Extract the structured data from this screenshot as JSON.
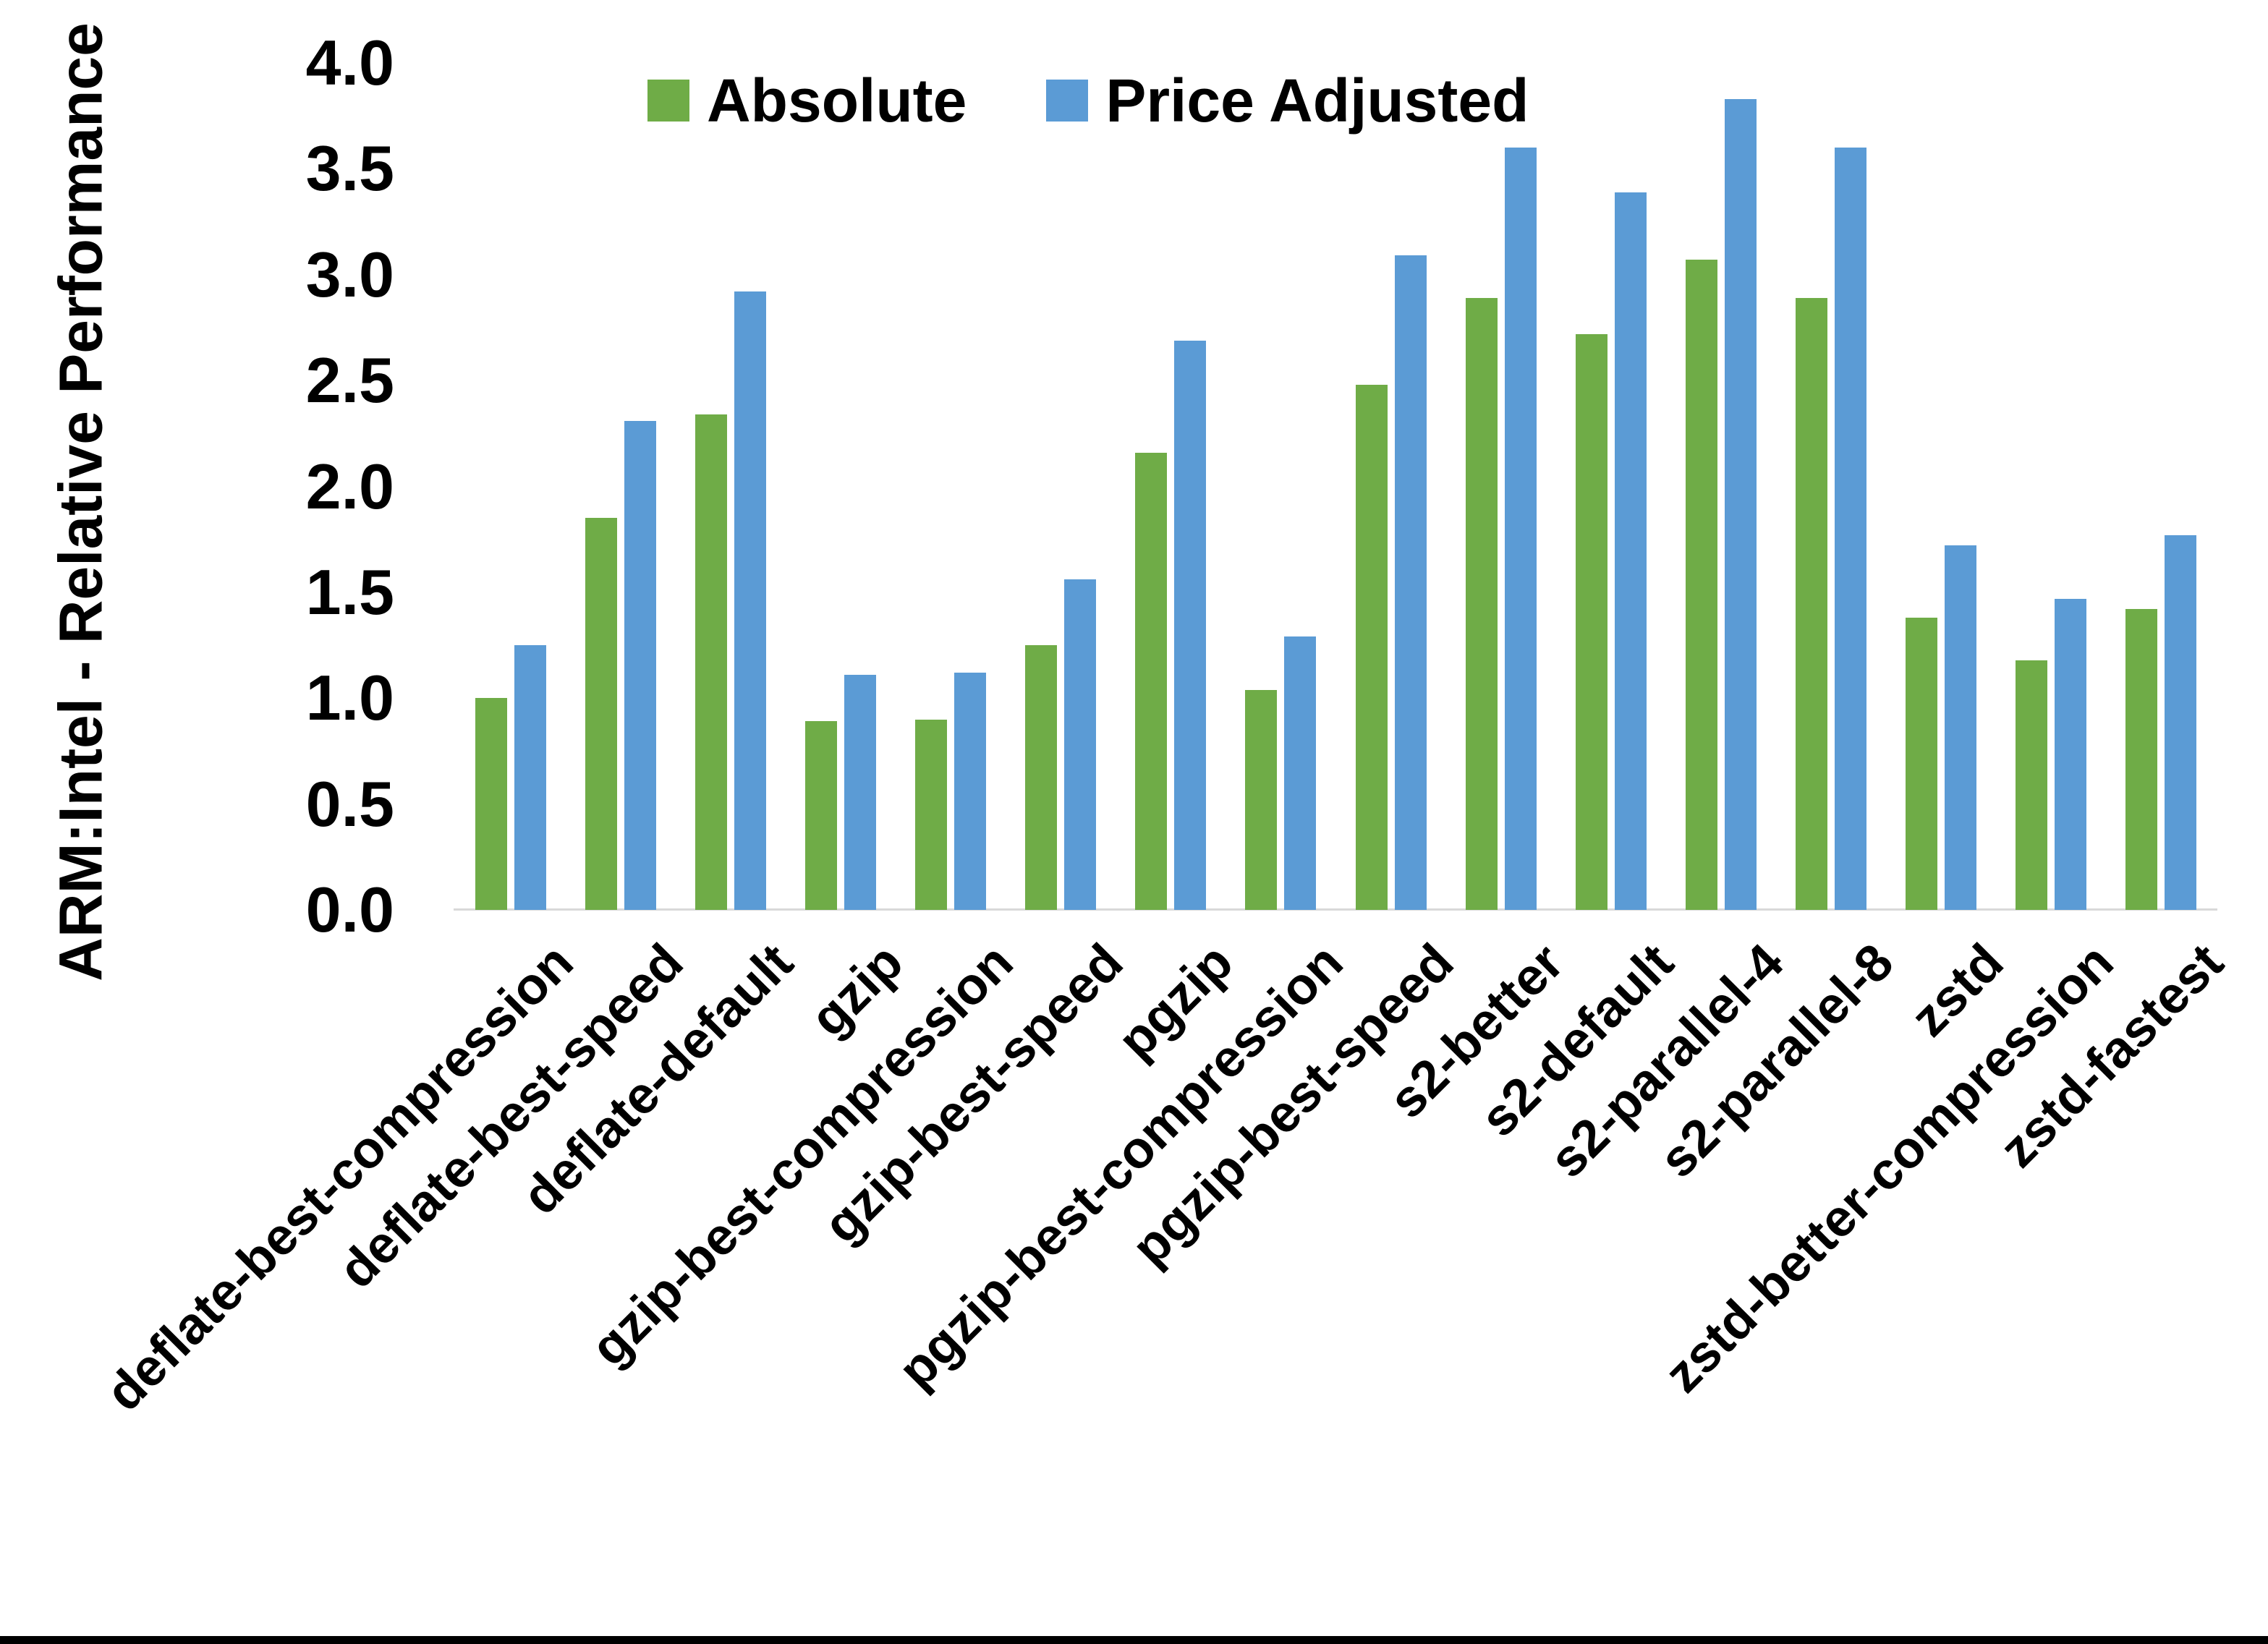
{
  "figure": {
    "background": "#ffffff",
    "bottom_border_color": "#000000"
  },
  "chart_data": {
    "type": "bar",
    "title": "",
    "xlabel": "",
    "ylabel": "ARM:Intel - Relative Performance",
    "ylim": [
      0,
      4
    ],
    "ytick_labels": [
      "0.0",
      "0.5",
      "1.0",
      "1.5",
      "2.0",
      "2.5",
      "3.0",
      "3.5",
      "4.0"
    ],
    "ytick_values": [
      0,
      0.5,
      1,
      1.5,
      2,
      2.5,
      3,
      3.5,
      4
    ],
    "grid": false,
    "legend_position": "top-center",
    "axis_line_color": "#d9d9d9",
    "categories": [
      "deflate-best-compression",
      "deflate-best-speed",
      "deflate-default",
      "gzip",
      "gzip-best-compression",
      "gzip-best-speed",
      "pgzip",
      "pgzip-best-compression",
      "pgzip-best-speed",
      "s2-better",
      "s2-default",
      "s2-parallel-4",
      "s2-parallel-8",
      "zstd",
      "zstd-better-compression",
      "zstd-fastest"
    ],
    "series": [
      {
        "name": "Absolute",
        "color": "#6FAC47",
        "values": [
          1.0,
          1.85,
          2.34,
          0.89,
          0.9,
          1.25,
          2.16,
          1.04,
          2.48,
          2.89,
          2.72,
          3.07,
          2.89,
          1.38,
          1.18,
          1.42
        ]
      },
      {
        "name": "Price Adjusted",
        "color": "#5B9BD5",
        "values": [
          1.25,
          2.31,
          2.92,
          1.11,
          1.12,
          1.56,
          2.69,
          1.29,
          3.09,
          3.6,
          3.39,
          3.83,
          3.6,
          1.72,
          1.47,
          1.77
        ]
      }
    ]
  }
}
